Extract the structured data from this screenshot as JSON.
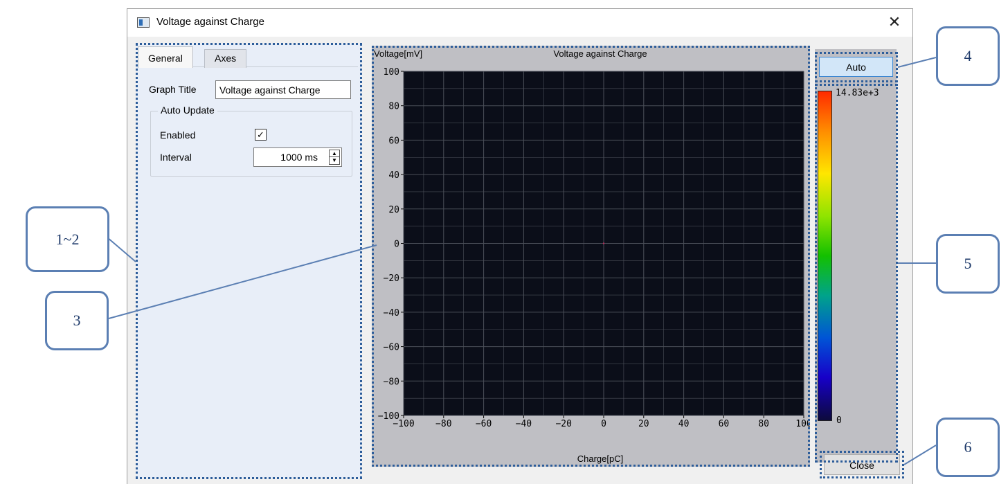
{
  "window": {
    "title": "Voltage against Charge",
    "close_glyph": "✕"
  },
  "settings": {
    "tabs": [
      {
        "label": "General",
        "active": true
      },
      {
        "label": "Axes",
        "active": false
      }
    ],
    "graph_title_label": "Graph Title",
    "graph_title_value": "Voltage against Charge",
    "auto_update": {
      "legend": "Auto Update",
      "enabled_label": "Enabled",
      "enabled_checked": true,
      "check_glyph": "✓",
      "interval_label": "Interval",
      "interval_value": "1000 ms",
      "spin_up_glyph": "▲",
      "spin_down_glyph": "▼"
    }
  },
  "plot": {
    "title": "Voltage against Charge",
    "y_axis_label": "Voltage[mV]",
    "x_axis_label": "Charge[pC]",
    "x_ticks": [
      "−100",
      "−80",
      "−60",
      "−40",
      "−20",
      "0",
      "20",
      "40",
      "60",
      "80",
      "100"
    ],
    "y_ticks": [
      "100",
      "80",
      "60",
      "40",
      "20",
      "0",
      "−20",
      "−40",
      "−60",
      "−80",
      "−100"
    ]
  },
  "chart_data": {
    "type": "heatmap",
    "title": "Voltage against Charge",
    "xlabel": "Charge[pC]",
    "ylabel": "Voltage[mV]",
    "xlim": [
      -100,
      100
    ],
    "ylim": [
      -100,
      100
    ],
    "x_tick_values": [
      -100,
      -80,
      -60,
      -40,
      -20,
      0,
      20,
      40,
      60,
      80,
      100
    ],
    "y_tick_values": [
      -100,
      -80,
      -60,
      -40,
      -20,
      0,
      20,
      40,
      60,
      80,
      100
    ],
    "grid": true,
    "points": [
      {
        "x": 0,
        "y": 0
      }
    ],
    "colorbar": {
      "min_label": "0",
      "max_label": "14.83e+3",
      "min": 0,
      "max": 14830
    }
  },
  "right": {
    "auto_label": "Auto",
    "close_label": "Close"
  },
  "colors": {
    "plot_background": "#0b0e19",
    "grid_line": "#4b4f59",
    "panel_gray": "#bfbfc4",
    "annotation_blue": "#2d5d9a",
    "point": "#c0285a"
  },
  "annotations": [
    {
      "label": "1~2"
    },
    {
      "label": "3"
    },
    {
      "label": "4"
    },
    {
      "label": "5"
    },
    {
      "label": "6"
    }
  ]
}
